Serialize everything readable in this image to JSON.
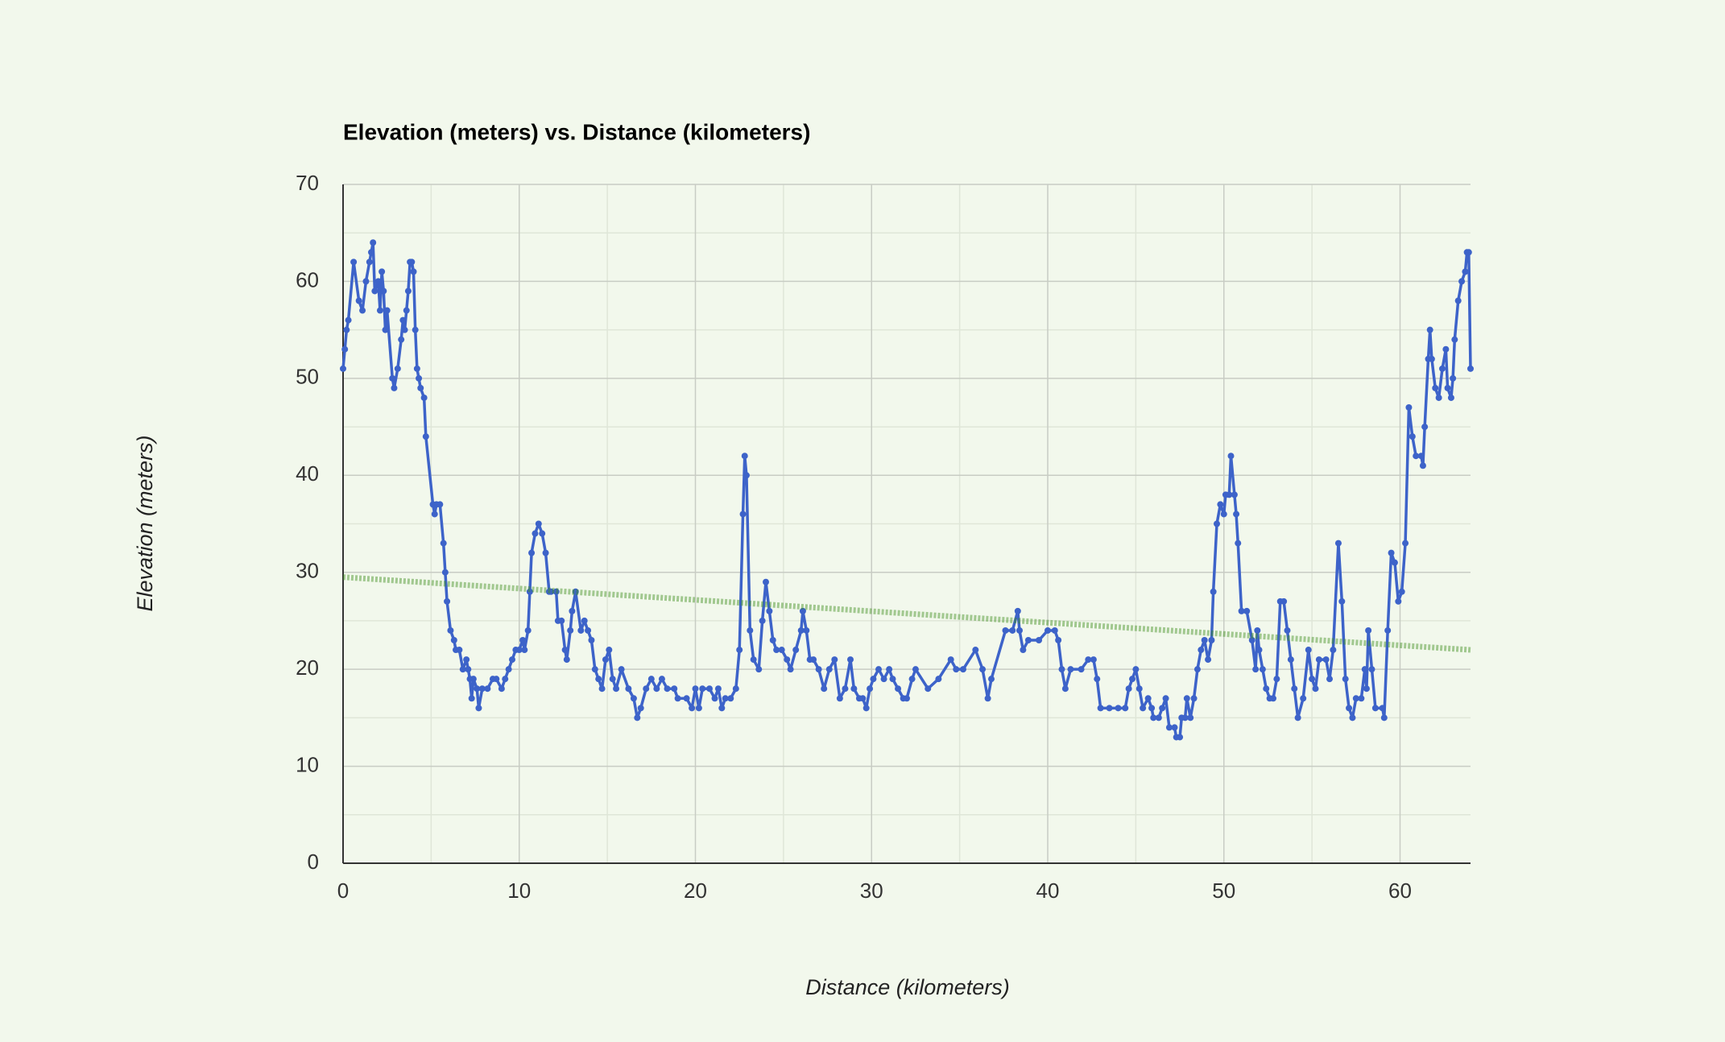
{
  "chart_data": {
    "type": "line",
    "title": "Elevation (meters) vs. Distance (kilometers)",
    "x_label": "Distance (kilometers)",
    "y_label": "Elevation (meters)",
    "xlim": [
      0,
      64
    ],
    "ylim": [
      0,
      70
    ],
    "xticks": [
      0,
      10,
      20,
      30,
      40,
      50,
      60
    ],
    "yticks": [
      0,
      10,
      20,
      30,
      40,
      50,
      60,
      70
    ],
    "grid": true,
    "minor_grid": true,
    "legend": false,
    "series": [
      {
        "color": "#3d63c9",
        "markers": true,
        "x": [
          0,
          0.1,
          0.2,
          0.3,
          0.6,
          0.9,
          1.1,
          1.3,
          1.5,
          1.6,
          1.7,
          1.8,
          2.0,
          2.1,
          2.2,
          2.3,
          2.4,
          2.5,
          2.8,
          2.9,
          3.1,
          3.3,
          3.4,
          3.5,
          3.6,
          3.7,
          3.8,
          3.9,
          4.0,
          4.1,
          4.2,
          4.3,
          4.4,
          4.6,
          4.7,
          5.1,
          5.2,
          5.3,
          5.5,
          5.7,
          5.8,
          5.9,
          6.1,
          6.3,
          6.4,
          6.6,
          6.8,
          7.0,
          7.1,
          7.2,
          7.3,
          7.4,
          7.6,
          7.7,
          7.9,
          8.2,
          8.5,
          8.7,
          9.0,
          9.2,
          9.4,
          9.6,
          9.8,
          10.0,
          10.2,
          10.3,
          10.5,
          10.6,
          10.7,
          10.9,
          11.1,
          11.3,
          11.5,
          11.7,
          11.8,
          12.1,
          12.2,
          12.4,
          12.6,
          12.7,
          12.9,
          13.0,
          13.2,
          13.5,
          13.7,
          13.9,
          14.1,
          14.3,
          14.5,
          14.7,
          14.9,
          15.1,
          15.3,
          15.5,
          15.8,
          16.2,
          16.5,
          16.7,
          16.9,
          17.2,
          17.5,
          17.8,
          18.1,
          18.4,
          18.8,
          19.0,
          19.5,
          19.8,
          20.0,
          20.2,
          20.4,
          20.8,
          21.1,
          21.3,
          21.5,
          21.7,
          22.0,
          22.3,
          22.5,
          22.7,
          22.8,
          22.9,
          23.1,
          23.3,
          23.6,
          23.8,
          24.0,
          24.2,
          24.4,
          24.6,
          24.9,
          25.2,
          25.4,
          25.7,
          26.0,
          26.1,
          26.3,
          26.5,
          26.7,
          27.0,
          27.3,
          27.6,
          27.9,
          28.2,
          28.5,
          28.8,
          29.0,
          29.3,
          29.5,
          29.7,
          29.9,
          30.1,
          30.4,
          30.7,
          31.0,
          31.2,
          31.5,
          31.8,
          32.0,
          32.3,
          32.5,
          33.2,
          33.8,
          34.5,
          34.8,
          35.2,
          35.9,
          36.3,
          36.6,
          36.8,
          37.6,
          38.0,
          38.3,
          38.4,
          38.6,
          38.9,
          39.5,
          40.0,
          40.4,
          40.6,
          40.8,
          41.0,
          41.3,
          41.9,
          42.3,
          42.6,
          42.8,
          43.0,
          43.5,
          44.0,
          44.4,
          44.6,
          44.8,
          45.0,
          45.2,
          45.4,
          45.7,
          45.9,
          46.0,
          46.3,
          46.5,
          46.7,
          46.9,
          47.2,
          47.3,
          47.5,
          47.6,
          47.8,
          47.9,
          48.1,
          48.3,
          48.5,
          48.7,
          48.9,
          49.1,
          49.3,
          49.4,
          49.6,
          49.8,
          50.0,
          50.1,
          50.3,
          50.4,
          50.6,
          50.7,
          50.8,
          51.0,
          51.3,
          51.6,
          51.8,
          51.9,
          52.0,
          52.2,
          52.4,
          52.6,
          52.8,
          53.0,
          53.2,
          53.4,
          53.6,
          53.8,
          54.0,
          54.2,
          54.5,
          54.8,
          55.0,
          55.2,
          55.4,
          55.8,
          56.0,
          56.2,
          56.5,
          56.7,
          56.9,
          57.1,
          57.3,
          57.5,
          57.8,
          58.0,
          58.1,
          58.2,
          58.4,
          58.6,
          59.0,
          59.1,
          59.3,
          59.5,
          59.7,
          59.9,
          60.1,
          60.3,
          60.5,
          60.7,
          60.9,
          61.2,
          61.3,
          61.4,
          61.6,
          61.7,
          61.8,
          62.0,
          62.2,
          62.4,
          62.6,
          62.7,
          62.9,
          63.0,
          63.1,
          63.3,
          63.5,
          63.7,
          63.8,
          63.9,
          64.0
        ],
        "values": [
          51,
          53,
          55,
          56,
          62,
          58,
          57,
          60,
          62,
          63,
          64,
          59,
          60,
          57,
          61,
          59,
          55,
          57,
          50,
          49,
          51,
          54,
          56,
          55,
          57,
          59,
          62,
          62,
          61,
          55,
          51,
          50,
          49,
          48,
          44,
          37,
          36,
          37,
          37,
          33,
          30,
          27,
          24,
          23,
          22,
          22,
          20,
          21,
          20,
          19,
          17,
          19,
          18,
          16,
          18,
          18,
          19,
          19,
          18,
          19,
          20,
          21,
          22,
          22,
          23,
          22,
          24,
          28,
          32,
          34,
          35,
          34,
          32,
          28,
          28,
          28,
          25,
          25,
          22,
          21,
          24,
          26,
          28,
          24,
          25,
          24,
          23,
          20,
          19,
          18,
          21,
          22,
          19,
          18,
          20,
          18,
          17,
          15,
          16,
          18,
          19,
          18,
          19,
          18,
          18,
          17,
          17,
          16,
          18,
          16,
          18,
          18,
          17,
          18,
          16,
          17,
          17,
          18,
          22,
          36,
          42,
          40,
          24,
          21,
          20,
          25,
          29,
          26,
          23,
          22,
          22,
          21,
          20,
          22,
          24,
          26,
          24,
          21,
          21,
          20,
          18,
          20,
          21,
          17,
          18,
          21,
          18,
          17,
          17,
          16,
          18,
          19,
          20,
          19,
          20,
          19,
          18,
          17,
          17,
          19,
          20,
          18,
          19,
          21,
          20,
          20,
          22,
          20,
          17,
          19,
          24,
          24,
          26,
          24,
          22,
          23,
          23,
          24,
          24,
          23,
          20,
          18,
          20,
          20,
          21,
          21,
          19,
          16,
          16,
          16,
          16,
          18,
          19,
          20,
          18,
          16,
          17,
          16,
          15,
          15,
          16,
          17,
          14,
          14,
          13,
          13,
          15,
          15,
          17,
          15,
          17,
          20,
          22,
          23,
          21,
          23,
          28,
          35,
          37,
          36,
          38,
          38,
          42,
          38,
          36,
          33,
          26,
          26,
          23,
          20,
          24,
          22,
          20,
          18,
          17,
          17,
          19,
          27,
          27,
          24,
          21,
          18,
          15,
          17,
          22,
          19,
          18,
          21,
          21,
          19,
          22,
          33,
          27,
          19,
          16,
          15,
          17,
          17,
          20,
          18,
          24,
          20,
          16,
          16,
          15,
          24,
          32,
          31,
          27,
          28,
          33,
          47,
          44,
          42,
          42,
          41,
          45,
          52,
          55,
          52,
          49,
          48,
          51,
          53,
          49,
          48,
          50,
          54,
          58,
          60,
          61,
          63,
          63,
          51
        ]
      },
      {
        "color": "#3f8f1f",
        "trendline": true,
        "x": [
          0,
          64
        ],
        "values": [
          29.5,
          22
        ]
      }
    ]
  }
}
